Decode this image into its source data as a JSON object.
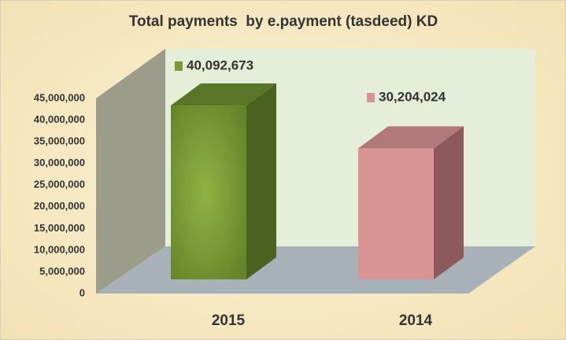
{
  "chart_data": {
    "type": "bar3d",
    "title": "Total payments  by e.payment (tasdeed) KD",
    "categories": [
      "2015",
      "2014"
    ],
    "values": [
      40092673,
      30204024
    ],
    "value_labels": [
      "40,092,673",
      "30,204,024"
    ],
    "colors": [
      "#7a9a3a",
      "#d99594"
    ],
    "ylim": [
      0,
      45000000
    ],
    "yticks": [
      0,
      {
        "value": 5000000,
        "label": "5,000,000"
      },
      {
        "value": 10000000,
        "label": "10,000,000"
      },
      {
        "value": 15000000,
        "label": "15,000,000"
      },
      {
        "value": 20000000,
        "label": "20,000,000"
      },
      {
        "value": 25000000,
        "label": "25,000,000"
      },
      {
        "value": 30000000,
        "label": "30,000,000"
      },
      {
        "value": 35000000,
        "label": "35,000,000"
      },
      {
        "value": 40000000,
        "label": "40,000,000"
      },
      {
        "value": 45000000,
        "label": "45,000,000"
      }
    ]
  }
}
